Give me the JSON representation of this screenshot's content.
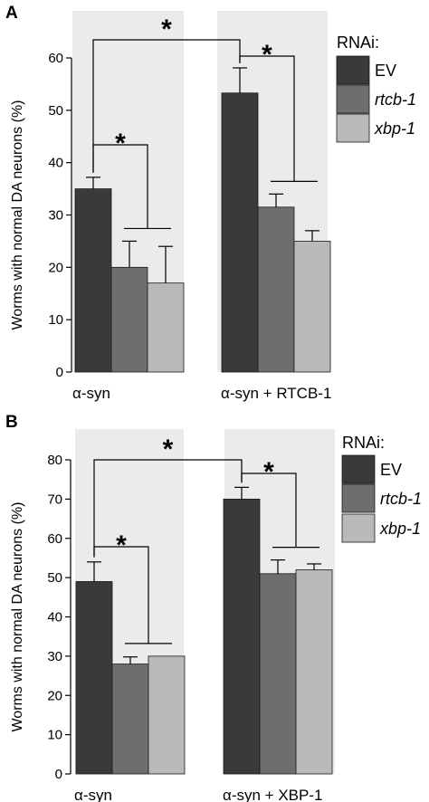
{
  "chart_data": [
    {
      "type": "bar",
      "panel_label": "A",
      "ylabel": "Worms with normal DA neurons (%)",
      "ylim": [
        0,
        60
      ],
      "yticks": [
        0,
        10,
        20,
        30,
        40,
        50,
        60
      ],
      "groups": [
        "α-syn",
        "α-syn + RTCB-1"
      ],
      "legend_title": "RNAi:",
      "series": [
        {
          "name": "EV",
          "color": "#3a3a3a",
          "values": [
            35,
            53.3
          ],
          "errors": [
            2.2,
            4.8
          ]
        },
        {
          "name": "rtcb-1",
          "color": "#6e6e6e",
          "values": [
            20,
            31.5
          ],
          "errors": [
            5,
            2.5
          ]
        },
        {
          "name": "xbp-1",
          "color": "#b9b9b9",
          "values": [
            17,
            25
          ],
          "errors": [
            7,
            2
          ]
        }
      ],
      "significance": [
        "*",
        "*",
        "*"
      ]
    },
    {
      "type": "bar",
      "panel_label": "B",
      "ylabel": "Worms with normal DA neurons (%)",
      "ylim": [
        0,
        80
      ],
      "yticks": [
        0,
        10,
        20,
        30,
        40,
        50,
        60,
        70,
        80
      ],
      "groups": [
        "α-syn",
        "α-syn + XBP-1"
      ],
      "legend_title": "RNAi:",
      "series": [
        {
          "name": "EV",
          "color": "#3a3a3a",
          "values": [
            49,
            70
          ],
          "errors": [
            5,
            3
          ]
        },
        {
          "name": "rtcb-1",
          "color": "#6e6e6e",
          "values": [
            28,
            51
          ],
          "errors": [
            1.8,
            3.5
          ]
        },
        {
          "name": "xbp-1",
          "color": "#b9b9b9",
          "values": [
            30,
            52
          ],
          "errors": [
            0,
            1.5
          ]
        }
      ],
      "significance": [
        "*",
        "*",
        "*"
      ]
    }
  ]
}
